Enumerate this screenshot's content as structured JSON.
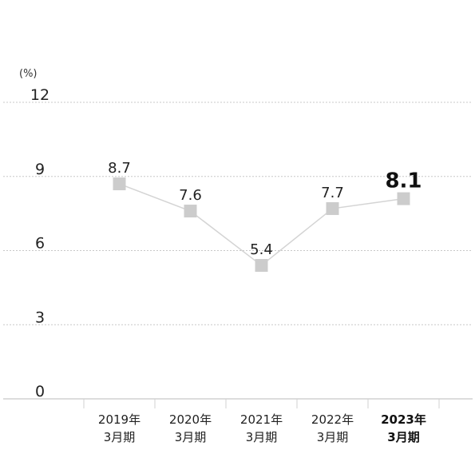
{
  "chart_data": {
    "type": "line",
    "unit": "(%)",
    "categories": [
      {
        "year": "2019年",
        "period": "3月期"
      },
      {
        "year": "2020年",
        "period": "3月期"
      },
      {
        "year": "2021年",
        "period": "3月期"
      },
      {
        "year": "2022年",
        "period": "3月期"
      },
      {
        "year": "2023年",
        "period": "3月期"
      }
    ],
    "values": [
      8.7,
      7.6,
      5.4,
      7.7,
      8.1
    ],
    "value_labels": [
      "8.7",
      "7.6",
      "5.4",
      "7.7",
      "8.1"
    ],
    "highlight_index": 4,
    "ylim": [
      0,
      12
    ],
    "yticks": [
      0,
      3,
      6,
      9,
      12
    ],
    "ytick_labels": [
      "0",
      "3",
      "6",
      "9",
      "12"
    ],
    "grid": true,
    "colors": {
      "line": "#d4d4d4",
      "marker": "#cccccc",
      "grid": "#c8c8c8",
      "text": "#222222"
    }
  }
}
